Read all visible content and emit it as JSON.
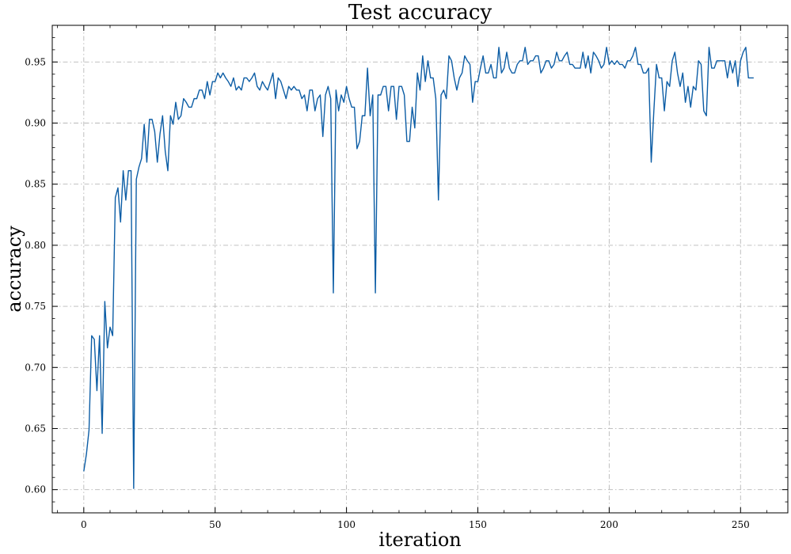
{
  "chart_data": {
    "type": "line",
    "title": "Test accuracy",
    "xlabel": "iteration",
    "ylabel": "accuracy",
    "xlim": [
      -12,
      268
    ],
    "ylim": [
      0.581,
      0.98
    ],
    "xticks": [
      0,
      50,
      100,
      150,
      200,
      250
    ],
    "yticks": [
      0.6,
      0.65,
      0.7,
      0.75,
      0.8,
      0.85,
      0.9,
      0.95
    ],
    "grid": true,
    "line_color": "#0c5da5",
    "series": [
      {
        "values": [
          0.615,
          0.629,
          0.649,
          0.726,
          0.723,
          0.681,
          0.726,
          0.646,
          0.754,
          0.716,
          0.733,
          0.726,
          0.839,
          0.847,
          0.819,
          0.861,
          0.837,
          0.861,
          0.861,
          0.601,
          0.854,
          0.864,
          0.871,
          0.899,
          0.868,
          0.903,
          0.903,
          0.893,
          0.868,
          0.891,
          0.906,
          0.877,
          0.861,
          0.906,
          0.899,
          0.917,
          0.903,
          0.906,
          0.92,
          0.917,
          0.913,
          0.913,
          0.92,
          0.92,
          0.927,
          0.927,
          0.92,
          0.934,
          0.923,
          0.934,
          0.934,
          0.941,
          0.937,
          0.941,
          0.937,
          0.934,
          0.93,
          0.937,
          0.927,
          0.93,
          0.927,
          0.937,
          0.937,
          0.934,
          0.937,
          0.941,
          0.93,
          0.927,
          0.934,
          0.93,
          0.927,
          0.934,
          0.941,
          0.92,
          0.937,
          0.934,
          0.927,
          0.92,
          0.93,
          0.927,
          0.93,
          0.927,
          0.927,
          0.92,
          0.923,
          0.91,
          0.927,
          0.927,
          0.91,
          0.92,
          0.923,
          0.889,
          0.923,
          0.93,
          0.92,
          0.761,
          0.927,
          0.91,
          0.923,
          0.917,
          0.93,
          0.92,
          0.913,
          0.913,
          0.879,
          0.885,
          0.906,
          0.906,
          0.945,
          0.906,
          0.923,
          0.761,
          0.923,
          0.923,
          0.93,
          0.93,
          0.91,
          0.93,
          0.93,
          0.903,
          0.93,
          0.93,
          0.923,
          0.885,
          0.885,
          0.913,
          0.896,
          0.941,
          0.927,
          0.955,
          0.934,
          0.951,
          0.937,
          0.937,
          0.92,
          0.837,
          0.923,
          0.927,
          0.92,
          0.955,
          0.951,
          0.937,
          0.927,
          0.937,
          0.941,
          0.955,
          0.951,
          0.948,
          0.917,
          0.934,
          0.934,
          0.945,
          0.955,
          0.941,
          0.941,
          0.948,
          0.937,
          0.937,
          0.962,
          0.941,
          0.945,
          0.958,
          0.945,
          0.941,
          0.941,
          0.948,
          0.951,
          0.951,
          0.962,
          0.948,
          0.951,
          0.951,
          0.955,
          0.955,
          0.941,
          0.945,
          0.951,
          0.951,
          0.945,
          0.948,
          0.958,
          0.951,
          0.951,
          0.955,
          0.958,
          0.948,
          0.948,
          0.945,
          0.945,
          0.945,
          0.958,
          0.945,
          0.955,
          0.941,
          0.958,
          0.955,
          0.951,
          0.945,
          0.948,
          0.962,
          0.948,
          0.951,
          0.948,
          0.951,
          0.948,
          0.948,
          0.945,
          0.951,
          0.951,
          0.955,
          0.962,
          0.948,
          0.948,
          0.941,
          0.941,
          0.945,
          0.868,
          0.91,
          0.948,
          0.937,
          0.937,
          0.91,
          0.934,
          0.93,
          0.951,
          0.958,
          0.941,
          0.93,
          0.941,
          0.917,
          0.93,
          0.913,
          0.93,
          0.927,
          0.951,
          0.948,
          0.91,
          0.906,
          0.962,
          0.945,
          0.945,
          0.951,
          0.951,
          0.951,
          0.951,
          0.937,
          0.951,
          0.941,
          0.951,
          0.93,
          0.951,
          0.958,
          0.962,
          0.937,
          0.937,
          0.937
        ]
      }
    ]
  }
}
